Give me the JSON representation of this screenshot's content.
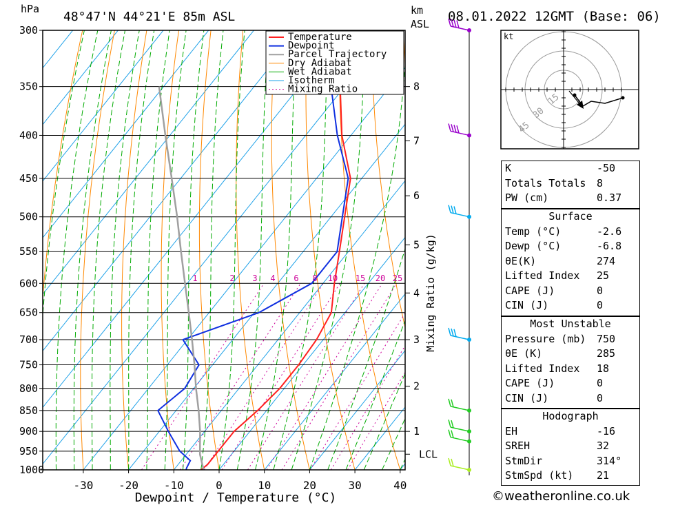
{
  "header": {
    "location": "48°47'N 44°21'E 85m ASL",
    "datetime": "08.01.2022 12GMT (Base: 06)",
    "pressure_unit": "hPa",
    "km_unit": "km",
    "km_unit2": "ASL"
  },
  "legend": [
    "Temperature",
    "Dewpoint",
    "Parcel Trajectory",
    "Dry Adiabat",
    "Wet Adiabat",
    "Isotherm",
    "Mixing Ratio"
  ],
  "colors": {
    "temperature": "#ff2020",
    "dewpoint": "#1030e0",
    "parcel": "#a0a0a0",
    "dry_adiabat": "#ff8800",
    "wet_adiabat": "#00aa00",
    "isotherm": "#1aa0e8",
    "mixing_ratio": "#cc0099",
    "wind_hi": "#9900cc",
    "wind_mid": "#00aaee",
    "wind_low": "#22cc22",
    "wind_sfc": "#aaee22"
  },
  "chart_data": {
    "type": "line",
    "title": "48°47'N 44°21'E 85m ASL",
    "xlabel": "Dewpoint / Temperature (°C)",
    "ylabel": "hPa",
    "xlim": [
      -40,
      40
    ],
    "ylim": [
      1000,
      300
    ],
    "x_ticks": [
      -30,
      -20,
      -10,
      0,
      10,
      20,
      30,
      40
    ],
    "pressure_levels": [
      300,
      350,
      400,
      450,
      500,
      550,
      600,
      650,
      700,
      750,
      800,
      850,
      900,
      950,
      1000
    ],
    "km_ticks": [
      {
        "label": "8",
        "p": 350
      },
      {
        "label": "7",
        "p": 406
      },
      {
        "label": "6",
        "p": 472
      },
      {
        "label": "5",
        "p": 540
      },
      {
        "label": "4",
        "p": 616
      },
      {
        "label": "3",
        "p": 700
      },
      {
        "label": "2",
        "p": 795
      },
      {
        "label": "1",
        "p": 900
      },
      {
        "label": "LCL",
        "p": 958
      }
    ],
    "mixing_ratio_label": "Mixing Ratio (g/kg)",
    "mixing_ratio_values": [
      "1",
      "2",
      "3",
      "4",
      "6",
      "8",
      "10",
      "15",
      "20",
      "25"
    ],
    "series": [
      {
        "name": "Temperature",
        "points": [
          [
            1010,
            -2.5
          ],
          [
            1000,
            -4
          ],
          [
            985,
            -3.5
          ],
          [
            950,
            -3.5
          ],
          [
            920,
            -3.5
          ],
          [
            900,
            -3.5
          ],
          [
            850,
            -2
          ],
          [
            800,
            -1
          ],
          [
            750,
            -1
          ],
          [
            700,
            -1.5
          ],
          [
            650,
            -3
          ],
          [
            600,
            -7.5
          ],
          [
            550,
            -12
          ],
          [
            500,
            -17
          ],
          [
            450,
            -22.5
          ],
          [
            400,
            -32
          ],
          [
            350,
            -41
          ],
          [
            300,
            -50
          ]
        ]
      },
      {
        "name": "Dewpoint",
        "points": [
          [
            1010,
            -6.8
          ],
          [
            995,
            -7.5
          ],
          [
            975,
            -8
          ],
          [
            950,
            -12
          ],
          [
            900,
            -18
          ],
          [
            850,
            -24
          ],
          [
            800,
            -22
          ],
          [
            750,
            -23
          ],
          [
            700,
            -31
          ],
          [
            650,
            -19
          ],
          [
            600,
            -12.5
          ],
          [
            550,
            -12.5
          ],
          [
            500,
            -17.5
          ],
          [
            450,
            -23
          ],
          [
            400,
            -33
          ],
          [
            350,
            -43
          ],
          [
            300,
            -57
          ]
        ]
      },
      {
        "name": "Parcel Trajectory",
        "points": [
          [
            1010,
            -2.6
          ],
          [
            958,
            -7
          ],
          [
            900,
            -11
          ],
          [
            850,
            -15
          ],
          [
            800,
            -19.5
          ],
          [
            750,
            -24
          ],
          [
            700,
            -29
          ],
          [
            650,
            -34.5
          ],
          [
            600,
            -40.5
          ],
          [
            550,
            -47
          ],
          [
            500,
            -54
          ],
          [
            450,
            -62
          ],
          [
            400,
            -71
          ],
          [
            350,
            -81
          ]
        ]
      }
    ]
  },
  "hodograph": {
    "unit": "kt",
    "ring_labels": [
      "15",
      "30",
      "45"
    ]
  },
  "indices": {
    "k": {
      "label": "K",
      "value": "-50"
    },
    "totals_totals": {
      "label": "Totals Totals",
      "value": "8"
    },
    "pw": {
      "label": "PW (cm)",
      "value": "0.37"
    }
  },
  "surface": {
    "title": "Surface",
    "temp": {
      "label": "Temp (°C)",
      "value": "-2.6"
    },
    "dewp": {
      "label": "Dewp (°C)",
      "value": "-6.8"
    },
    "theta_e": {
      "label": "θE(K)",
      "value": "274"
    },
    "lifted_index": {
      "label": "Lifted Index",
      "value": "25"
    },
    "cape": {
      "label": "CAPE (J)",
      "value": "0"
    },
    "cin": {
      "label": "CIN (J)",
      "value": "0"
    }
  },
  "most_unstable": {
    "title": "Most Unstable",
    "pressure": {
      "label": "Pressure (mb)",
      "value": "750"
    },
    "theta_e": {
      "label": "θE (K)",
      "value": "285"
    },
    "lifted_index": {
      "label": "Lifted Index",
      "value": "18"
    },
    "cape": {
      "label": "CAPE (J)",
      "value": "0"
    },
    "cin": {
      "label": "CIN (J)",
      "value": "0"
    }
  },
  "hodo_stats": {
    "title": "Hodograph",
    "eh": {
      "label": "EH",
      "value": "-16"
    },
    "sreh": {
      "label": "SREH",
      "value": "32"
    },
    "stmdir": {
      "label": "StmDir",
      "value": "314°"
    },
    "stmspd": {
      "label": "StmSpd (kt)",
      "value": "21"
    }
  },
  "copyright": "©weatheronline.co.uk"
}
